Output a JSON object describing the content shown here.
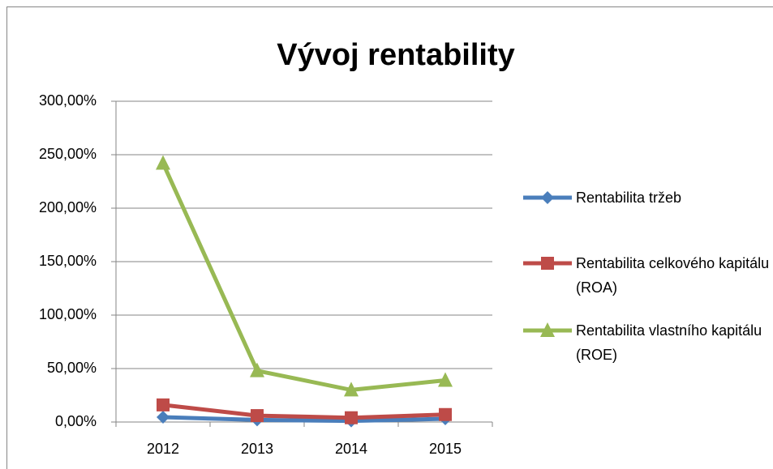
{
  "chart_data": {
    "type": "line",
    "title": "Vývoj rentability",
    "categories": [
      "2012",
      "2013",
      "2014",
      "2015"
    ],
    "series": [
      {
        "name": "Rentabilita tržeb",
        "color": "#4a7ebb",
        "marker": "diamond",
        "values": [
          4.5,
          2,
          1,
          3
        ]
      },
      {
        "name": "Rentabilita celkového kapitálu (ROA)",
        "color": "#be4b48",
        "marker": "square",
        "values": [
          16,
          6,
          4,
          7
        ]
      },
      {
        "name": "Rentabilita vlastního kapitálu (ROE)",
        "color": "#98b954",
        "marker": "triangle",
        "values": [
          242,
          48,
          30,
          39
        ]
      }
    ],
    "ylim": [
      0,
      300
    ],
    "yticks": [
      {
        "value": 0,
        "label": "0,00%"
      },
      {
        "value": 50,
        "label": "50,00%"
      },
      {
        "value": 100,
        "label": "100,00%"
      },
      {
        "value": 150,
        "label": "150,00%"
      },
      {
        "value": 200,
        "label": "200,00%"
      },
      {
        "value": 250,
        "label": "250,00%"
      },
      {
        "value": 300,
        "label": "300,00%"
      }
    ],
    "grid": true,
    "legend": "right"
  }
}
